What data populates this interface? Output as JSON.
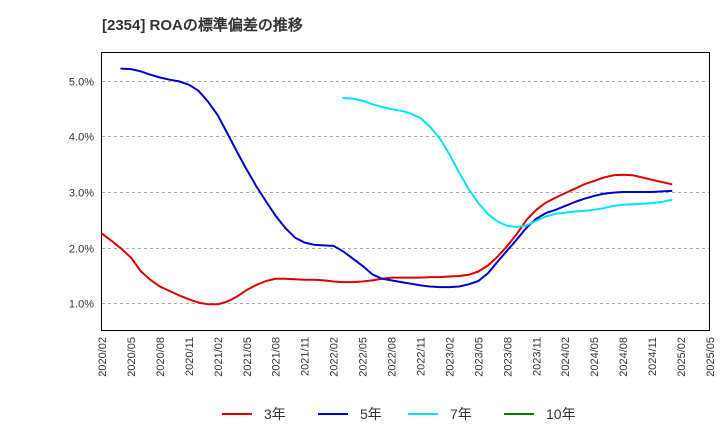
{
  "chart_data": {
    "type": "line",
    "title": "[2354]  ROAの標準偏差の推移",
    "xlabel": "",
    "ylabel": "",
    "x_ticks": [
      "2020/02",
      "2020/05",
      "2020/08",
      "2020/11",
      "2021/02",
      "2021/05",
      "2021/08",
      "2021/11",
      "2022/02",
      "2022/05",
      "2022/08",
      "2022/11",
      "2023/02",
      "2023/05",
      "2023/08",
      "2023/11",
      "2024/02",
      "2024/05",
      "2024/08",
      "2024/11",
      "2025/02",
      "2025/05"
    ],
    "y_ticks": [
      "1.0%",
      "2.0%",
      "3.0%",
      "4.0%",
      "5.0%"
    ],
    "ylim": [
      0.5,
      5.5
    ],
    "grid": "horizontal dashed",
    "legend_position": "bottom",
    "series": [
      {
        "name": "3年",
        "color": "#dd0000",
        "points": [
          [
            "2020/02",
            2.25
          ],
          [
            "2020/03",
            2.12
          ],
          [
            "2020/04",
            1.98
          ],
          [
            "2020/05",
            1.82
          ],
          [
            "2020/06",
            1.58
          ],
          [
            "2020/07",
            1.42
          ],
          [
            "2020/08",
            1.3
          ],
          [
            "2020/09",
            1.22
          ],
          [
            "2020/10",
            1.14
          ],
          [
            "2020/11",
            1.07
          ],
          [
            "2020/12",
            1.01
          ],
          [
            "2021/01",
            0.98
          ],
          [
            "2021/02",
            0.98
          ],
          [
            "2021/03",
            1.03
          ],
          [
            "2021/04",
            1.12
          ],
          [
            "2021/05",
            1.24
          ],
          [
            "2021/06",
            1.33
          ],
          [
            "2021/07",
            1.4
          ],
          [
            "2021/08",
            1.44
          ],
          [
            "2021/09",
            1.44
          ],
          [
            "2021/10",
            1.43
          ],
          [
            "2021/11",
            1.42
          ],
          [
            "2021/12",
            1.42
          ],
          [
            "2022/01",
            1.41
          ],
          [
            "2022/02",
            1.39
          ],
          [
            "2022/03",
            1.38
          ],
          [
            "2022/04",
            1.38
          ],
          [
            "2022/05",
            1.39
          ],
          [
            "2022/06",
            1.41
          ],
          [
            "2022/07",
            1.44
          ],
          [
            "2022/08",
            1.46
          ],
          [
            "2022/09",
            1.46
          ],
          [
            "2022/10",
            1.46
          ],
          [
            "2022/11",
            1.46
          ],
          [
            "2022/12",
            1.47
          ],
          [
            "2023/01",
            1.47
          ],
          [
            "2023/02",
            1.48
          ],
          [
            "2023/03",
            1.49
          ],
          [
            "2023/04",
            1.51
          ],
          [
            "2023/05",
            1.57
          ],
          [
            "2023/06",
            1.68
          ],
          [
            "2023/07",
            1.84
          ],
          [
            "2023/08",
            2.03
          ],
          [
            "2023/09",
            2.25
          ],
          [
            "2023/10",
            2.5
          ],
          [
            "2023/11",
            2.68
          ],
          [
            "2023/12",
            2.81
          ],
          [
            "2024/01",
            2.9
          ],
          [
            "2024/02",
            2.98
          ],
          [
            "2024/03",
            3.06
          ],
          [
            "2024/04",
            3.14
          ],
          [
            "2024/05",
            3.2
          ],
          [
            "2024/06",
            3.26
          ],
          [
            "2024/07",
            3.3
          ],
          [
            "2024/08",
            3.31
          ],
          [
            "2024/09",
            3.3
          ],
          [
            "2024/10",
            3.26
          ],
          [
            "2024/11",
            3.22
          ],
          [
            "2024/12",
            3.18
          ],
          [
            "2025/01",
            3.14
          ]
        ]
      },
      {
        "name": "5年",
        "color": "#0000cc",
        "points": [
          [
            "2020/04",
            5.22
          ],
          [
            "2020/05",
            5.21
          ],
          [
            "2020/06",
            5.17
          ],
          [
            "2020/07",
            5.11
          ],
          [
            "2020/08",
            5.06
          ],
          [
            "2020/09",
            5.02
          ],
          [
            "2020/10",
            4.99
          ],
          [
            "2020/11",
            4.93
          ],
          [
            "2020/12",
            4.82
          ],
          [
            "2021/01",
            4.62
          ],
          [
            "2021/02",
            4.38
          ],
          [
            "2021/03",
            4.05
          ],
          [
            "2021/04",
            3.72
          ],
          [
            "2021/05",
            3.4
          ],
          [
            "2021/06",
            3.1
          ],
          [
            "2021/07",
            2.83
          ],
          [
            "2021/08",
            2.57
          ],
          [
            "2021/09",
            2.35
          ],
          [
            "2021/10",
            2.18
          ],
          [
            "2021/11",
            2.09
          ],
          [
            "2021/12",
            2.05
          ],
          [
            "2022/01",
            2.04
          ],
          [
            "2022/02",
            2.03
          ],
          [
            "2022/03",
            1.93
          ],
          [
            "2022/04",
            1.8
          ],
          [
            "2022/05",
            1.67
          ],
          [
            "2022/06",
            1.52
          ],
          [
            "2022/07",
            1.44
          ],
          [
            "2022/08",
            1.41
          ],
          [
            "2022/09",
            1.38
          ],
          [
            "2022/10",
            1.35
          ],
          [
            "2022/11",
            1.32
          ],
          [
            "2022/12",
            1.3
          ],
          [
            "2023/01",
            1.29
          ],
          [
            "2023/02",
            1.29
          ],
          [
            "2023/03",
            1.3
          ],
          [
            "2023/04",
            1.34
          ],
          [
            "2023/05",
            1.4
          ],
          [
            "2023/06",
            1.54
          ],
          [
            "2023/07",
            1.75
          ],
          [
            "2023/08",
            1.95
          ],
          [
            "2023/09",
            2.15
          ],
          [
            "2023/10",
            2.36
          ],
          [
            "2023/11",
            2.52
          ],
          [
            "2023/12",
            2.62
          ],
          [
            "2024/01",
            2.68
          ],
          [
            "2024/02",
            2.75
          ],
          [
            "2024/03",
            2.82
          ],
          [
            "2024/04",
            2.88
          ],
          [
            "2024/05",
            2.93
          ],
          [
            "2024/06",
            2.97
          ],
          [
            "2024/07",
            2.99
          ],
          [
            "2024/08",
            3.0
          ],
          [
            "2024/09",
            3.0
          ],
          [
            "2024/10",
            3.0
          ],
          [
            "2024/11",
            3.0
          ],
          [
            "2024/12",
            3.01
          ],
          [
            "2025/01",
            3.02
          ]
        ]
      },
      {
        "name": "7年",
        "color": "#00e5ee",
        "points": [
          [
            "2022/03",
            4.69
          ],
          [
            "2022/04",
            4.68
          ],
          [
            "2022/05",
            4.64
          ],
          [
            "2022/06",
            4.58
          ],
          [
            "2022/07",
            4.53
          ],
          [
            "2022/08",
            4.49
          ],
          [
            "2022/09",
            4.46
          ],
          [
            "2022/10",
            4.41
          ],
          [
            "2022/11",
            4.33
          ],
          [
            "2022/12",
            4.17
          ],
          [
            "2023/01",
            3.96
          ],
          [
            "2023/02",
            3.68
          ],
          [
            "2023/03",
            3.35
          ],
          [
            "2023/04",
            3.05
          ],
          [
            "2023/05",
            2.8
          ],
          [
            "2023/06",
            2.6
          ],
          [
            "2023/07",
            2.47
          ],
          [
            "2023/08",
            2.39
          ],
          [
            "2023/09",
            2.37
          ],
          [
            "2023/10",
            2.4
          ],
          [
            "2023/11",
            2.48
          ],
          [
            "2023/12",
            2.56
          ],
          [
            "2024/01",
            2.61
          ],
          [
            "2024/02",
            2.63
          ],
          [
            "2024/03",
            2.65
          ],
          [
            "2024/04",
            2.66
          ],
          [
            "2024/05",
            2.68
          ],
          [
            "2024/06",
            2.71
          ],
          [
            "2024/07",
            2.75
          ],
          [
            "2024/08",
            2.77
          ],
          [
            "2024/09",
            2.78
          ],
          [
            "2024/10",
            2.79
          ],
          [
            "2024/11",
            2.8
          ],
          [
            "2024/12",
            2.82
          ],
          [
            "2025/01",
            2.86
          ]
        ]
      },
      {
        "name": "10年",
        "color": "#008000",
        "points": []
      }
    ]
  }
}
